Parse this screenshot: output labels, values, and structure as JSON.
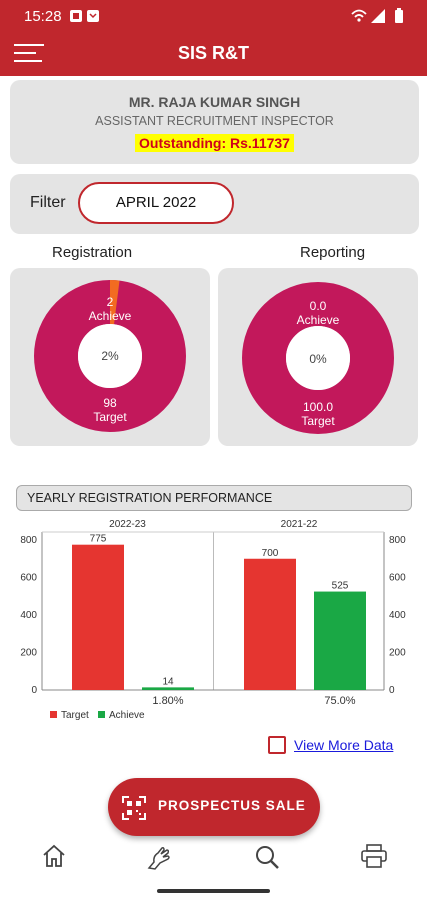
{
  "status_bar": {
    "time": "15:28"
  },
  "app_bar": {
    "title": "SIS R&T"
  },
  "profile": {
    "name": "MR. RAJA KUMAR SINGH",
    "designation": "ASSISTANT RECRUITMENT INSPECTOR",
    "outstanding": "Outstanding:  Rs.11737"
  },
  "filter": {
    "label": "Filter",
    "value": "APRIL 2022"
  },
  "registration": {
    "title": "Registration",
    "achieve_value": "2",
    "achieve_label": "Achieve",
    "center": "2%",
    "target_value": "98",
    "target_label": "Target",
    "achieve_fraction": 0.02
  },
  "reporting": {
    "title": "Reporting",
    "achieve_value": "0.0",
    "achieve_label": "Achieve",
    "center": "0%",
    "target_value": "100.0",
    "target_label": "Target",
    "achieve_fraction": 0.0
  },
  "yearly": {
    "title": "YEARLY REGISTRATION PERFORMANCE"
  },
  "chart_data": {
    "type": "bar",
    "groups": [
      "2022-23",
      "2021-22"
    ],
    "series": [
      {
        "name": "Target",
        "color": "#e53530",
        "values": [
          775,
          700
        ]
      },
      {
        "name": "Achieve",
        "color": "#1aa845",
        "values": [
          14,
          525
        ]
      }
    ],
    "value_labels": {
      "Target": [
        "775",
        "700"
      ],
      "Achieve": [
        "14",
        "525"
      ]
    },
    "percent_labels": [
      "1.80%",
      "75.0%"
    ],
    "ylim": [
      0,
      800
    ],
    "yticks": [
      0,
      200,
      400,
      600,
      800
    ],
    "grid": false,
    "legend": "bottom-left"
  },
  "view_more": {
    "label": "View More Data"
  },
  "fab": {
    "label": "PROSPECTUS SALE"
  },
  "colors": {
    "primary": "#c0272d",
    "donut": "#c2185b",
    "achieve_slice": "#f26b21"
  },
  "bottom_nav": {
    "items": [
      "home-icon",
      "hand-icon",
      "search-icon",
      "print-icon"
    ]
  }
}
